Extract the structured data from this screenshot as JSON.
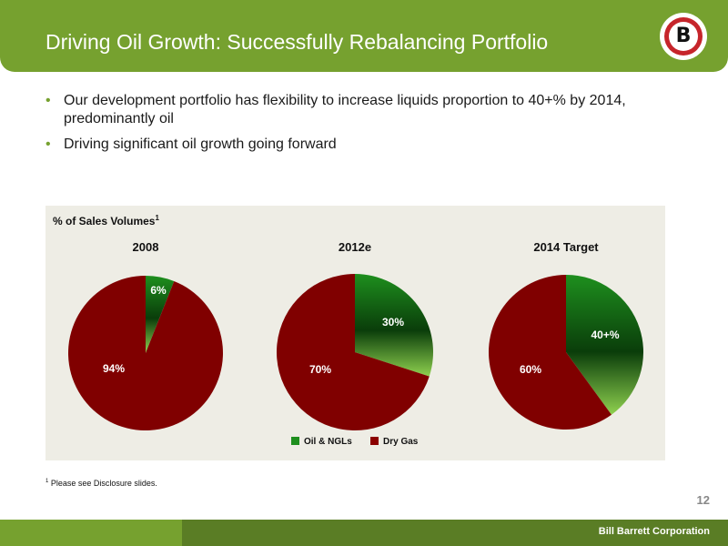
{
  "header": {
    "title": "Driving Oil Growth: Successfully Rebalancing Portfolio",
    "logo_letter": "B"
  },
  "bullets": [
    "Our development portfolio has flexibility to increase liquids proportion to 40+% by 2014, predominantly oil",
    "Driving significant oil growth going forward"
  ],
  "chart_panel": {
    "label": "% of Sales Volumes",
    "label_superscript": "1"
  },
  "chart_data": {
    "type": "pie",
    "legend_position": "bottom-center",
    "legend": [
      {
        "name": "Oil & NGLs",
        "color": "#1e8f1e"
      },
      {
        "name": "Dry Gas",
        "color": "#8b0000"
      }
    ],
    "charts": [
      {
        "title": "2008",
        "slices": [
          {
            "name": "Oil & NGLs",
            "value": 6,
            "label": "6%"
          },
          {
            "name": "Dry Gas",
            "value": 94,
            "label": "94%"
          }
        ]
      },
      {
        "title": "2012e",
        "slices": [
          {
            "name": "Oil & NGLs",
            "value": 30,
            "label": "30%"
          },
          {
            "name": "Dry Gas",
            "value": 70,
            "label": "70%"
          }
        ]
      },
      {
        "title": "2014 Target",
        "slices": [
          {
            "name": "Oil & NGLs",
            "value": 40,
            "label": "40+%"
          },
          {
            "name": "Dry Gas",
            "value": 60,
            "label": "60%"
          }
        ]
      }
    ]
  },
  "footnote": {
    "superscript": "1",
    "text": "Please see Disclosure slides."
  },
  "page_number": "12",
  "company": "Bill Barrett Corporation"
}
